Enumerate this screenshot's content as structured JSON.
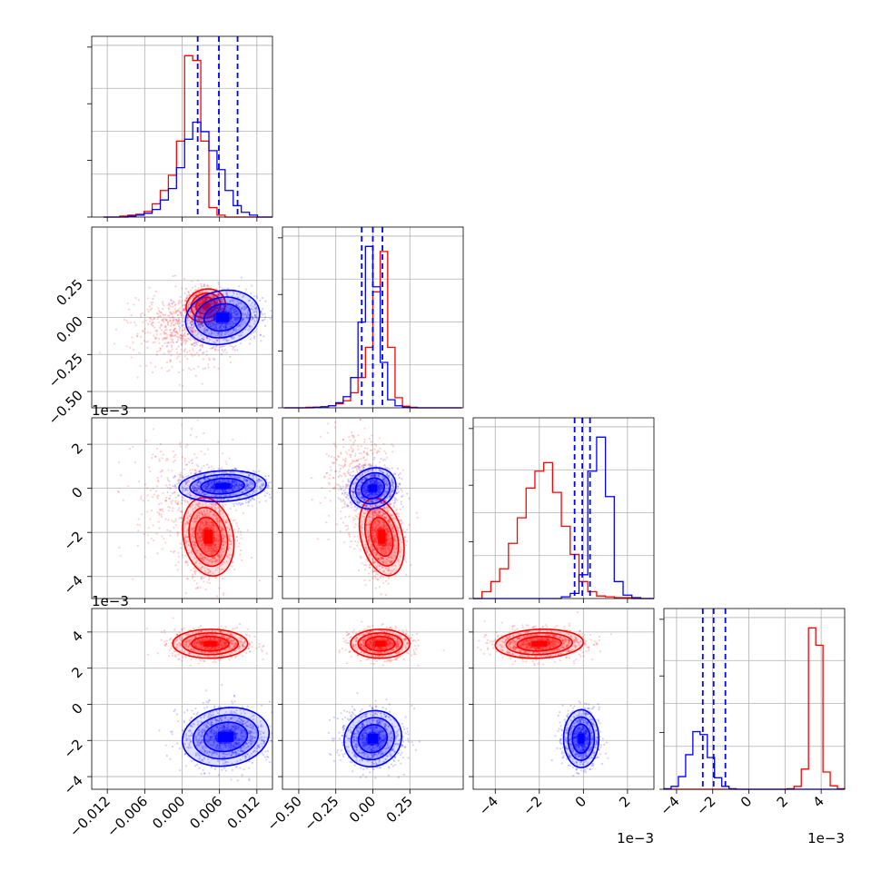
{
  "figure": {
    "series_colors": [
      "#ff0000",
      "#0000ff"
    ]
  },
  "chart_data": [
    {
      "type": "histogram",
      "panel": "param-1",
      "xlim": [
        -0.0145,
        0.0145
      ],
      "x_ticks": [
        -0.012,
        -0.006,
        0.0,
        0.006,
        0.012
      ],
      "x_tick_labels": [
        "−0.012",
        "−0.006",
        "0.000",
        "0.006",
        "0.012"
      ],
      "grid": true,
      "bins": [
        -0.0126,
        -0.0113,
        -0.01,
        -0.0087,
        -0.0074,
        -0.0061,
        -0.0048,
        -0.0035,
        -0.0022,
        -0.0009,
        0.0004,
        0.0017,
        0.003,
        0.0043,
        0.0056,
        0.0069,
        0.0082,
        0.0095,
        0.0108,
        0.0121,
        0.0134,
        0.0145
      ],
      "series": [
        {
          "color": "#ff0000",
          "values": [
            0,
            0,
            1,
            2,
            3,
            6,
            14,
            28,
            44,
            80,
            170,
            165,
            80,
            10,
            2,
            0,
            0,
            0,
            0,
            0,
            0
          ]
        },
        {
          "color": "#0000ff",
          "values": [
            0,
            0,
            0,
            1,
            2,
            4,
            8,
            18,
            30,
            52,
            82,
            100,
            90,
            70,
            50,
            28,
            12,
            5,
            2,
            0,
            0
          ]
        }
      ],
      "quantile_lines": [
        0.0025,
        0.0059,
        0.0089
      ],
      "quantile_color": "#0000ff"
    },
    {
      "type": "histogram",
      "panel": "param-2",
      "xlim": [
        -0.61,
        0.61
      ],
      "x_ticks": [
        -0.5,
        -0.25,
        0.0,
        0.25
      ],
      "x_tick_labels": [
        "−0.50",
        "−0.25",
        "0.00",
        "0.25"
      ],
      "grid": true,
      "bins": [
        -0.6,
        -0.55,
        -0.5,
        -0.45,
        -0.4,
        -0.35,
        -0.3,
        -0.25,
        -0.2,
        -0.15,
        -0.1,
        -0.05,
        0.0,
        0.05,
        0.1,
        0.15,
        0.2,
        0.25,
        0.3,
        0.35,
        0.4,
        0.45,
        0.5,
        0.55,
        0.6
      ],
      "series": [
        {
          "color": "#ff0000",
          "values": [
            0,
            0,
            0,
            1,
            1,
            2,
            4,
            8,
            14,
            30,
            60,
            120,
            230,
            310,
            120,
            20,
            3,
            1,
            0,
            0,
            0,
            0,
            0,
            0
          ]
        },
        {
          "color": "#0000ff",
          "values": [
            0,
            0,
            0,
            0,
            1,
            2,
            4,
            10,
            22,
            60,
            170,
            320,
            240,
            90,
            16,
            4,
            1,
            0,
            0,
            0,
            0,
            0,
            0,
            0
          ]
        }
      ],
      "quantile_lines": [
        -0.075,
        0.0,
        0.065
      ],
      "quantile_color": "#0000ff"
    },
    {
      "type": "histogram",
      "panel": "param-3",
      "xlim": [
        -5.0,
        3.2
      ],
      "scale_label": "1e−3",
      "x_ticks": [
        -4,
        -2,
        0,
        2
      ],
      "x_tick_labels": [
        "−4",
        "−2",
        "0",
        "2"
      ],
      "grid": true,
      "bins": [
        -5.0,
        -4.6,
        -4.2,
        -3.8,
        -3.4,
        -3.0,
        -2.6,
        -2.2,
        -1.8,
        -1.4,
        -1.0,
        -0.6,
        -0.2,
        0.2,
        0.6,
        1.0,
        1.4,
        1.8,
        2.2,
        2.6,
        3.2
      ],
      "series": [
        {
          "color": "#ff0000",
          "values": [
            0,
            8,
            20,
            35,
            65,
            95,
            130,
            150,
            160,
            125,
            85,
            52,
            20,
            8,
            3,
            2,
            1,
            1,
            0,
            0
          ]
        },
        {
          "color": "#0000ff",
          "values": [
            0,
            0,
            0,
            0,
            0,
            0,
            0,
            0,
            0,
            0,
            2,
            6,
            28,
            150,
            190,
            120,
            20,
            4,
            1,
            0
          ]
        }
      ],
      "quantile_lines": [
        -0.4,
        -0.05,
        0.3
      ],
      "quantile_color": "#0000ff"
    },
    {
      "type": "histogram",
      "panel": "param-4",
      "xlim": [
        -4.7,
        5.3
      ],
      "scale_label": "1e−3",
      "x_ticks": [
        -4,
        -2,
        0,
        2,
        4
      ],
      "x_tick_labels": [
        "−4",
        "−2",
        "0",
        "2",
        "4"
      ],
      "grid": true,
      "bins": [
        -4.7,
        -4.3,
        -3.9,
        -3.5,
        -3.1,
        -2.7,
        -2.3,
        -1.9,
        -1.5,
        -1.1,
        -0.7,
        -0.3,
        0.1,
        0.5,
        0.9,
        1.3,
        1.7,
        2.1,
        2.5,
        2.9,
        3.3,
        3.7,
        4.1,
        4.5,
        4.9,
        5.3
      ],
      "series": [
        {
          "color": "#ff0000",
          "values": [
            0,
            0,
            0,
            0,
            0,
            0,
            0,
            0,
            0,
            0,
            0,
            0,
            0,
            0,
            0,
            0,
            0,
            1,
            5,
            35,
            280,
            250,
            30,
            6,
            1
          ]
        },
        {
          "color": "#0000ff",
          "values": [
            1,
            5,
            22,
            60,
            100,
            95,
            55,
            20,
            5,
            1,
            0,
            0,
            0,
            0,
            0,
            0,
            0,
            0,
            0,
            0,
            0,
            0,
            0,
            0,
            0
          ]
        }
      ],
      "quantile_lines": [
        -2.55,
        -1.95,
        -1.3
      ],
      "quantile_color": "#0000ff"
    },
    {
      "type": "scatter-contour",
      "panel": "param-2-vs-param-1",
      "xlim": [
        -0.0145,
        0.0145
      ],
      "ylim": [
        -0.61,
        0.61
      ],
      "y_ticks": [
        -0.5,
        -0.25,
        0.0,
        0.25
      ],
      "y_tick_labels": [
        "−0.50",
        "−0.25",
        "0.00",
        "0.25"
      ],
      "grid": true,
      "blobs": [
        {
          "color": "#ff0000",
          "center": [
            0.0038,
            0.08
          ],
          "sd": [
            0.0016,
            0.055
          ],
          "rot": 0.3,
          "n": 700
        },
        {
          "color": "#ff0000",
          "center": [
            0.0002,
            -0.08
          ],
          "sd": [
            0.0038,
            0.12
          ],
          "rot": 0.4,
          "n": 600
        },
        {
          "color": "#0000ff",
          "center": [
            0.0065,
            0.0
          ],
          "sd": [
            0.003,
            0.09
          ],
          "rot": 0.2,
          "n": 900
        }
      ]
    },
    {
      "type": "scatter-contour",
      "panel": "param-3-vs-param-1",
      "xlim": [
        -0.0145,
        0.0145
      ],
      "ylim": [
        -5.0,
        3.2
      ],
      "scale_label": "1e−3",
      "y_ticks": [
        -4,
        -2,
        0,
        2
      ],
      "y_tick_labels": [
        "−4",
        "−2",
        "0",
        "2"
      ],
      "grid": true,
      "blobs": [
        {
          "color": "#ff0000",
          "center": [
            0.0042,
            -2.2
          ],
          "sd": [
            0.002,
            0.9
          ],
          "rot": 0.2,
          "n": 900
        },
        {
          "color": "#ff0000",
          "center": [
            0.0,
            -0.5
          ],
          "sd": [
            0.004,
            1.5
          ],
          "rot": 0.2,
          "n": 350
        },
        {
          "color": "#0000ff",
          "center": [
            0.0065,
            0.1
          ],
          "sd": [
            0.0035,
            0.35
          ],
          "rot": 0.05,
          "n": 900
        }
      ]
    },
    {
      "type": "scatter-contour",
      "panel": "param-3-vs-param-2",
      "xlim": [
        -0.61,
        0.61
      ],
      "ylim": [
        -5.0,
        3.2
      ],
      "grid": true,
      "blobs": [
        {
          "color": "#ff0000",
          "center": [
            0.06,
            -2.2
          ],
          "sd": [
            0.07,
            0.9
          ],
          "rot": 0.25,
          "n": 900
        },
        {
          "color": "#ff0000",
          "center": [
            -0.12,
            0.5
          ],
          "sd": [
            0.11,
            1.2
          ],
          "rot": 0.5,
          "n": 350
        },
        {
          "color": "#0000ff",
          "center": [
            0.0,
            0.0
          ],
          "sd": [
            0.08,
            0.45
          ],
          "rot": 0.45,
          "n": 900
        }
      ]
    },
    {
      "type": "scatter-contour",
      "panel": "param-4-vs-param-1",
      "xlim": [
        -0.0145,
        0.0145
      ],
      "ylim": [
        -4.7,
        5.3
      ],
      "scale_label": "1e−3",
      "y_ticks": [
        -4,
        -2,
        0,
        2,
        4
      ],
      "y_tick_labels": [
        "−4",
        "−2",
        "0",
        "2",
        "4"
      ],
      "grid": true,
      "blobs": [
        {
          "color": "#ff0000",
          "center": [
            0.0045,
            3.35
          ],
          "sd": [
            0.003,
            0.4
          ],
          "rot": 0.0,
          "n": 900
        },
        {
          "color": "#0000ff",
          "center": [
            0.007,
            -1.8
          ],
          "sd": [
            0.0035,
            0.8
          ],
          "rot": 0.15,
          "n": 1000
        }
      ]
    },
    {
      "type": "scatter-contour",
      "panel": "param-4-vs-param-2",
      "xlim": [
        -0.61,
        0.61
      ],
      "ylim": [
        -4.7,
        5.3
      ],
      "grid": true,
      "blobs": [
        {
          "color": "#ff0000",
          "center": [
            0.05,
            3.35
          ],
          "sd": [
            0.1,
            0.4
          ],
          "rot": 0.0,
          "n": 900
        },
        {
          "color": "#0000ff",
          "center": [
            0.0,
            -1.9
          ],
          "sd": [
            0.1,
            0.75
          ],
          "rot": 0.65,
          "n": 1000
        }
      ]
    },
    {
      "type": "scatter-contour",
      "panel": "param-4-vs-param-3",
      "xlim": [
        -5.0,
        3.2
      ],
      "ylim": [
        -4.7,
        5.3
      ],
      "grid": true,
      "blobs": [
        {
          "color": "#ff0000",
          "center": [
            -2.0,
            3.35
          ],
          "sd": [
            1.0,
            0.4
          ],
          "rot": 0.04,
          "n": 1000
        },
        {
          "color": "#0000ff",
          "center": [
            -0.1,
            -1.9
          ],
          "sd": [
            0.4,
            0.8
          ],
          "rot": 0.0,
          "n": 900
        }
      ]
    }
  ]
}
